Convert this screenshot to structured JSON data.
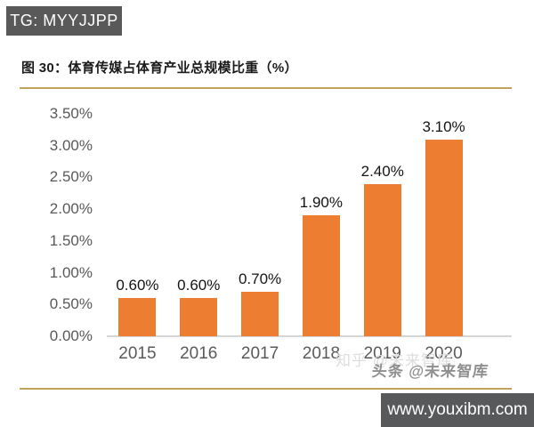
{
  "header": {
    "badge_label": "TG: MYYJJPP"
  },
  "chart": {
    "title": "图 30：体育传媒占体育产业总规模比重（%）"
  },
  "chart_data": {
    "type": "bar",
    "title": "图 30：体育传媒占体育产业总规模比重（%）",
    "categories": [
      "2015",
      "2016",
      "2017",
      "2018",
      "2019",
      "2020"
    ],
    "values": [
      0.6,
      0.6,
      0.7,
      1.9,
      2.4,
      3.1
    ],
    "value_labels": [
      "0.60%",
      "0.60%",
      "0.70%",
      "1.90%",
      "2.40%",
      "3.10%"
    ],
    "xlabel": "",
    "ylabel": "",
    "ylim": [
      0,
      3.5
    ],
    "yticks": [
      "3.50%",
      "3.00%",
      "2.50%",
      "2.00%",
      "1.50%",
      "1.00%",
      "0.50%",
      "0.00%"
    ],
    "grid": false,
    "legend": null,
    "bar_color": "#ED7D31"
  },
  "watermark": {
    "line1": "知乎 @未来智库",
    "line2": "头条 @未来智库"
  },
  "footer": {
    "url_label": "www.youxibm.com"
  },
  "colors": {
    "bar": "#ED7D31",
    "rule_gold": "#C2A158",
    "badge_bg": "#595959",
    "axis_text": "#595959"
  }
}
